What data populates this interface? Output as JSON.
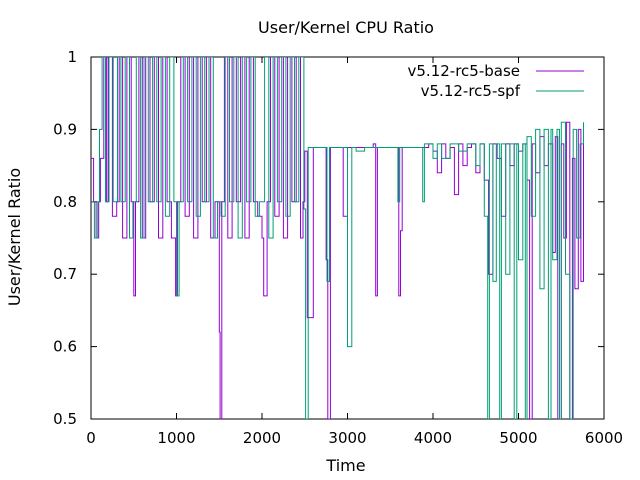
{
  "chart_data": {
    "type": "line",
    "title": "User/Kernel CPU Ratio",
    "xlabel": "Time",
    "ylabel": "User/Kernel Ratio",
    "xlim": [
      0,
      6000
    ],
    "ylim": [
      0.5,
      1
    ],
    "x_ticks": [
      "0",
      "1000",
      "2000",
      "3000",
      "4000",
      "5000",
      "6000"
    ],
    "y_ticks": [
      "0.5",
      "0.6",
      "0.7",
      "0.8",
      "0.9",
      "1"
    ],
    "grid": false,
    "legend_position": "top-right",
    "line_style": "steps",
    "series": [
      {
        "name": "v5.12-rc5-base",
        "color": "#9400d3",
        "x": [
          0,
          30,
          60,
          90,
          110,
          150,
          180,
          200,
          250,
          300,
          330,
          370,
          420,
          470,
          500,
          520,
          560,
          600,
          640,
          690,
          740,
          790,
          840,
          890,
          940,
          990,
          1010,
          1050,
          1100,
          1150,
          1200,
          1250,
          1300,
          1350,
          1400,
          1450,
          1500,
          1510,
          1530,
          1560,
          1600,
          1650,
          1700,
          1750,
          1800,
          1850,
          1900,
          1950,
          2000,
          2020,
          2060,
          2100,
          2150,
          2200,
          2250,
          2300,
          2350,
          2400,
          2450,
          2480,
          2500,
          2530,
          2600,
          2700,
          2750,
          2770,
          2800,
          2900,
          2950,
          3000,
          3100,
          3200,
          3300,
          3330,
          3350,
          3400,
          3500,
          3600,
          3620,
          3640,
          3700,
          3800,
          3900,
          3950,
          4000,
          4050,
          4100,
          4150,
          4200,
          4250,
          4300,
          4350,
          4400,
          4450,
          4500,
          4550,
          4600,
          4650,
          4700,
          4750,
          4800,
          4850,
          4900,
          4950,
          5000,
          5050,
          5100,
          5130,
          5160,
          5200,
          5250,
          5300,
          5350,
          5400,
          5430,
          5460,
          5500,
          5530,
          5560,
          5600,
          5630,
          5660,
          5700,
          5730,
          5760
        ],
        "values": [
          0.86,
          0.8,
          0.75,
          0.8,
          0.86,
          1,
          0.8,
          1,
          0.78,
          0.8,
          1,
          0.75,
          1,
          0.8,
          0.67,
          0.8,
          1,
          0.75,
          1,
          0.8,
          1,
          0.75,
          1,
          0.8,
          0.75,
          0.67,
          0.8,
          1,
          0.78,
          1,
          0.75,
          1,
          0.8,
          1,
          0.75,
          0.8,
          0.62,
          0.5,
          0.8,
          1,
          0.75,
          1,
          0.8,
          1,
          0.75,
          1,
          0.8,
          0.78,
          0.75,
          0.67,
          0.8,
          1,
          0.78,
          1,
          0.75,
          1,
          0.8,
          1,
          0.75,
          0.8,
          0.87,
          0.64,
          0.875,
          0.875,
          0.72,
          0.5,
          0.875,
          0.875,
          0.78,
          0.875,
          0.875,
          0.875,
          0.88,
          0.67,
          0.875,
          0.875,
          0.875,
          0.67,
          0.76,
          0.875,
          0.875,
          0.875,
          0.875,
          0.88,
          0.87,
          0.84,
          0.88,
          0.86,
          0.875,
          0.81,
          0.88,
          0.85,
          0.875,
          0.88,
          0.84,
          0.88,
          0.83,
          0.7,
          0.88,
          0.86,
          0.78,
          0.88,
          0.85,
          0.88,
          0.87,
          0.88,
          0.83,
          0.5,
          0.88,
          0.84,
          0.89,
          0.85,
          0.88,
          0.73,
          0.89,
          0.5,
          0.88,
          0.75,
          0.91,
          0.5,
          0.86,
          0.68,
          0.9,
          0.69,
          0.89
        ]
      },
      {
        "name": "v5.12-rc5-spf",
        "color": "#009e73",
        "x": [
          0,
          40,
          80,
          100,
          130,
          170,
          210,
          260,
          310,
          350,
          400,
          450,
          490,
          530,
          580,
          620,
          670,
          720,
          770,
          820,
          870,
          920,
          970,
          1000,
          1030,
          1080,
          1130,
          1180,
          1230,
          1280,
          1330,
          1380,
          1430,
          1480,
          1520,
          1570,
          1620,
          1670,
          1720,
          1770,
          1820,
          1870,
          1920,
          1970,
          2030,
          2080,
          2130,
          2180,
          2230,
          2280,
          2330,
          2380,
          2430,
          2490,
          2510,
          2540,
          2600,
          2700,
          2760,
          2790,
          2850,
          2950,
          3000,
          3050,
          3100,
          3200,
          3300,
          3400,
          3500,
          3590,
          3610,
          3650,
          3700,
          3800,
          3850,
          3880,
          3900,
          4000,
          4050,
          4100,
          4200,
          4300,
          4400,
          4500,
          4550,
          4600,
          4640,
          4660,
          4700,
          4740,
          4780,
          4800,
          4850,
          4900,
          4950,
          4980,
          5000,
          5050,
          5080,
          5100,
          5150,
          5200,
          5250,
          5300,
          5350,
          5380,
          5400,
          5450,
          5480,
          5500,
          5550,
          5600,
          5640,
          5680,
          5720,
          5760
        ],
        "values": [
          0.8,
          0.75,
          0.8,
          0.9,
          1,
          0.8,
          1,
          0.8,
          1,
          0.8,
          1,
          0.75,
          0.8,
          1,
          0.75,
          1,
          0.8,
          1,
          0.8,
          1,
          0.78,
          1,
          0.8,
          0.67,
          0.8,
          1,
          0.8,
          1,
          0.78,
          1,
          0.8,
          1,
          0.75,
          0.8,
          0.78,
          1,
          0.8,
          1,
          0.75,
          1,
          0.8,
          1,
          0.78,
          0.8,
          1,
          0.75,
          1,
          0.8,
          1,
          0.78,
          1,
          0.8,
          1,
          0.79,
          0.5,
          0.875,
          0.875,
          0.875,
          0.69,
          0.875,
          0.875,
          0.875,
          0.6,
          0.875,
          0.87,
          0.875,
          0.875,
          0.875,
          0.875,
          0.8,
          0.875,
          0.875,
          0.875,
          0.875,
          0.875,
          0.8,
          0.88,
          0.86,
          0.88,
          0.86,
          0.88,
          0.87,
          0.88,
          0.85,
          0.88,
          0.78,
          0.5,
          0.88,
          0.69,
          0.88,
          0.5,
          0.88,
          0.7,
          0.88,
          0.5,
          0.88,
          0.72,
          0.88,
          0.5,
          0.89,
          0.78,
          0.9,
          0.68,
          0.9,
          0.5,
          0.9,
          0.72,
          0.9,
          0.5,
          0.91,
          0.7,
          0.5,
          0.9,
          0.75,
          0.88,
          0.91
        ]
      }
    ]
  }
}
